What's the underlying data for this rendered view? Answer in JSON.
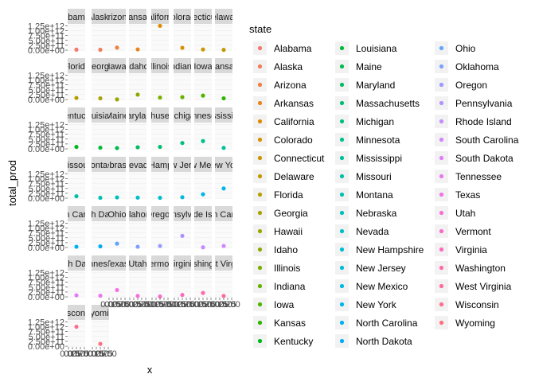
{
  "chart_data": {
    "type": "scatter",
    "facet": "state",
    "xlabel": "x",
    "ylabel": "total_prod",
    "y_ticks": [
      "0.00e+00",
      "2.50e+11",
      "5.00e+11",
      "7.50e+11",
      "1.00e+12",
      "1.25e+12"
    ],
    "x_ticks": [
      "0.00",
      "0.25",
      "0.50",
      "0.75",
      "1.00"
    ],
    "legend_title": "state",
    "facets": [
      {
        "state": "Alabama",
        "strip": "abama",
        "color": "#F8766D",
        "x": 0.5,
        "y": 25000000000
      },
      {
        "state": "Alaska",
        "strip": "Alaska",
        "color": "#F37B59",
        "x": 0.5,
        "y": 20000000000
      },
      {
        "state": "Arizona",
        "strip": "Arizona",
        "color": "#ED8141",
        "x": 0.5,
        "y": 130000000000
      },
      {
        "state": "Arkansas",
        "strip": "kansas",
        "color": "#E7861B",
        "x": 0.5,
        "y": 40000000000
      },
      {
        "state": "California",
        "strip": "California",
        "color": "#DF8B00",
        "x": 0.5,
        "y": 1250000000000
      },
      {
        "state": "Colorado",
        "strip": "Colorado",
        "color": "#D69100",
        "x": 0.5,
        "y": 120000000000
      },
      {
        "state": "Connecticut",
        "strip": "necticut",
        "color": "#CC9600",
        "x": 0.5,
        "y": 35000000000
      },
      {
        "state": "Delaware",
        "strip": "Delaware",
        "color": "#C19A00",
        "x": 0.5,
        "y": 15000000000
      },
      {
        "state": "Florida",
        "strip": "Florida",
        "color": "#B59F00",
        "x": 0.5,
        "y": 80000000000
      },
      {
        "state": "Georgia",
        "strip": "Georgia",
        "color": "#A8A300",
        "x": 0.5,
        "y": 60000000000
      },
      {
        "state": "Hawaii",
        "strip": "Hawaii",
        "color": "#9AA700",
        "x": 0.5,
        "y": 5000000000
      },
      {
        "state": "Idaho",
        "strip": "Idaho",
        "color": "#8BAB00",
        "x": 0.5,
        "y": 250000000000
      },
      {
        "state": "Illinois",
        "strip": "Illinois",
        "color": "#7AAE00",
        "x": 0.5,
        "y": 100000000000
      },
      {
        "state": "Indiana",
        "strip": "Indiana",
        "color": "#67B100",
        "x": 0.5,
        "y": 120000000000
      },
      {
        "state": "Iowa",
        "strip": "Iowa",
        "color": "#4FB400",
        "x": 0.5,
        "y": 200000000000
      },
      {
        "state": "Kansas",
        "strip": "Kansas",
        "color": "#2BB600",
        "x": 0.5,
        "y": 60000000000
      },
      {
        "state": "Kentucky",
        "strip": "Kentucky",
        "color": "#00B81B",
        "x": 0.5,
        "y": 100000000000
      },
      {
        "state": "Louisiana",
        "strip": "Louisiana",
        "color": "#00BA38",
        "x": 0.5,
        "y": 60000000000
      },
      {
        "state": "Maine",
        "strip": "Maine",
        "color": "#00BB4E",
        "x": 0.5,
        "y": 40000000000
      },
      {
        "state": "Maryland",
        "strip": "Maryland",
        "color": "#00BC61",
        "x": 0.5,
        "y": 80000000000
      },
      {
        "state": "Massachusetts",
        "strip": "achusetts",
        "color": "#00BE71",
        "x": 0.5,
        "y": 100000000000
      },
      {
        "state": "Michigan",
        "strip": "Michigan",
        "color": "#00BF80",
        "x": 0.5,
        "y": 300000000000
      },
      {
        "state": "Minnesota",
        "strip": "Minnesota",
        "color": "#00C08E",
        "x": 0.5,
        "y": 400000000000
      },
      {
        "state": "Mississippi",
        "strip": "Mississippi",
        "color": "#00C09B",
        "x": 0.5,
        "y": 50000000000
      },
      {
        "state": "Missouri",
        "strip": "Missouri",
        "color": "#00C1A7",
        "x": 0.5,
        "y": 100000000000
      },
      {
        "state": "Montana",
        "strip": "Montana",
        "color": "#00C1B3",
        "x": 0.5,
        "y": 20000000000
      },
      {
        "state": "Nebraska",
        "strip": "Nebraska",
        "color": "#00C0BE",
        "x": 0.5,
        "y": 40000000000
      },
      {
        "state": "Nevada",
        "strip": "Nevada",
        "color": "#00BFC7",
        "x": 0.5,
        "y": 30000000000
      },
      {
        "state": "New Hampshire",
        "strip": "New Hampshire",
        "color": "#00BDD1",
        "x": 0.5,
        "y": 20000000000
      },
      {
        "state": "New Jersey",
        "strip": "New Jersey",
        "color": "#00BBDA",
        "x": 0.5,
        "y": 50000000000
      },
      {
        "state": "New Mexico",
        "strip": "New Mexico",
        "color": "#00B8E2",
        "x": 0.5,
        "y": 200000000000
      },
      {
        "state": "New York",
        "strip": "New York",
        "color": "#00B5EA",
        "x": 0.5,
        "y": 500000000000
      },
      {
        "state": "North Carolina",
        "strip": "North Carolina",
        "color": "#00B1F1",
        "x": 0.5,
        "y": 40000000000
      },
      {
        "state": "North Dakota",
        "strip": "North Dakota",
        "color": "#00ACF7",
        "x": 0.5,
        "y": 60000000000
      },
      {
        "state": "Ohio",
        "strip": "Ohio",
        "color": "#61A6FD",
        "x": 0.5,
        "y": 200000000000
      },
      {
        "state": "Oklahoma",
        "strip": "Oklahoma",
        "color": "#7CA0FF",
        "x": 0.5,
        "y": 40000000000
      },
      {
        "state": "Oregon",
        "strip": "Oregon",
        "color": "#9999FF",
        "x": 0.5,
        "y": 80000000000
      },
      {
        "state": "Pennsylvania",
        "strip": "Pennsylvania",
        "color": "#B092FF",
        "x": 0.5,
        "y": 600000000000
      },
      {
        "state": "Rhode Island",
        "strip": "Rhode Island",
        "color": "#C38BFF",
        "x": 0.5,
        "y": 10000000000
      },
      {
        "state": "South Carolina",
        "strip": "South Carolina",
        "color": "#D383FF",
        "x": 0.5,
        "y": 80000000000
      },
      {
        "state": "South Dakota",
        "strip": "South Dakota",
        "color": "#E17CF9",
        "x": 0.5,
        "y": 80000000000
      },
      {
        "state": "Tennessee",
        "strip": "Tennessee",
        "color": "#EA76EF",
        "x": 0.5,
        "y": 60000000000
      },
      {
        "state": "Texas",
        "strip": "Texas",
        "color": "#F272E4",
        "x": 0.5,
        "y": 350000000000
      },
      {
        "state": "Utah",
        "strip": "Utah",
        "color": "#F86ED8",
        "x": 0.5,
        "y": 50000000000
      },
      {
        "state": "Vermont",
        "strip": "Vermont",
        "color": "#FC6BCA",
        "x": 0.5,
        "y": 20000000000
      },
      {
        "state": "Virginia",
        "strip": "Virginia",
        "color": "#FF69BC",
        "x": 0.5,
        "y": 100000000000
      },
      {
        "state": "Washington",
        "strip": "Washington",
        "color": "#FF69AD",
        "x": 0.5,
        "y": 200000000000
      },
      {
        "state": "West Virginia",
        "strip": "West Virginia",
        "color": "#FF6A9D",
        "x": 0.5,
        "y": 50000000000
      },
      {
        "state": "Wisconsin",
        "strip": "Wisconsin",
        "color": "#FF6C8C",
        "x": 0.5,
        "y": 1000000000000
      },
      {
        "state": "Wyoming",
        "strip": "Wyoming",
        "color": "#FC717C",
        "x": 0.5,
        "y": 120000000000
      }
    ]
  }
}
